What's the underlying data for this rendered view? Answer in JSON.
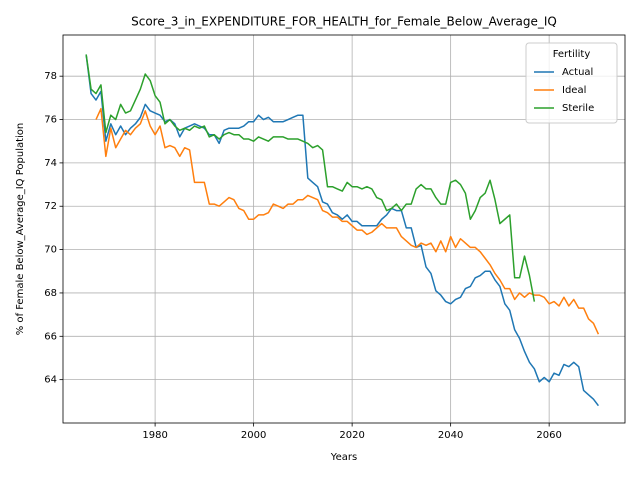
{
  "chart_data": {
    "type": "line",
    "title": "Score_3_in_EXPENDITURE_FOR_HEALTH_for_Female_Below_Average_IQ",
    "x_label": "Years",
    "y_label": "% of Female Below_Average_IQ Population",
    "legend_title": "Fertility",
    "legend_position": "upper right",
    "grid": true,
    "xlim": [
      1961.3,
      2075.4
    ],
    "ylim": [
      62.0,
      79.9
    ],
    "xticks": [
      1980,
      2000,
      2020,
      2040,
      2060
    ],
    "yticks": [
      64,
      66,
      68,
      70,
      72,
      74,
      76,
      78
    ],
    "x": [
      1966,
      1967,
      1968,
      1969,
      1970,
      1971,
      1972,
      1973,
      1974,
      1975,
      1976,
      1977,
      1978,
      1979,
      1980,
      1981,
      1982,
      1983,
      1984,
      1985,
      1986,
      1987,
      1988,
      1989,
      1990,
      1991,
      1992,
      1993,
      1994,
      1995,
      1996,
      1997,
      1998,
      1999,
      2000,
      2001,
      2002,
      2003,
      2004,
      2005,
      2006,
      2007,
      2008,
      2009,
      2010,
      2011,
      2012,
      2013,
      2014,
      2015,
      2016,
      2017,
      2018,
      2019,
      2020,
      2021,
      2022,
      2023,
      2024,
      2025,
      2026,
      2027,
      2028,
      2029,
      2030,
      2031,
      2032,
      2033,
      2034,
      2035,
      2036,
      2037,
      2038,
      2039,
      2040,
      2041,
      2042,
      2043,
      2044,
      2045,
      2046,
      2047,
      2048,
      2049,
      2050,
      2051,
      2052,
      2053,
      2054,
      2055,
      2056,
      2057,
      2058,
      2059,
      2060,
      2061,
      2062,
      2063,
      2064,
      2065,
      2066,
      2067,
      2068,
      2069,
      2070
    ],
    "series": [
      {
        "name": "Actual",
        "color": "#1f77b4",
        "values": [
          79.0,
          77.2,
          76.9,
          77.3,
          75.0,
          75.8,
          75.3,
          75.7,
          75.3,
          75.6,
          75.8,
          76.1,
          76.7,
          76.4,
          76.3,
          76.2,
          75.9,
          76.0,
          75.8,
          75.2,
          75.6,
          75.7,
          75.8,
          75.7,
          75.6,
          75.3,
          75.3,
          74.9,
          75.5,
          75.6,
          75.6,
          75.6,
          75.7,
          75.9,
          75.9,
          76.2,
          76.0,
          76.1,
          75.9,
          75.9,
          75.9,
          76.0,
          76.1,
          76.2,
          76.2,
          73.3,
          73.1,
          72.9,
          72.2,
          72.1,
          71.7,
          71.6,
          71.4,
          71.6,
          71.3,
          71.3,
          71.1,
          71.1,
          71.1,
          71.1,
          71.4,
          71.6,
          71.9,
          71.8,
          71.8,
          71.0,
          71.0,
          70.1,
          70.2,
          69.2,
          68.9,
          68.1,
          67.9,
          67.6,
          67.5,
          67.7,
          67.8,
          68.2,
          68.3,
          68.7,
          68.8,
          69.0,
          69.0,
          68.6,
          68.3,
          67.5,
          67.2,
          66.3,
          65.9,
          65.3,
          64.8,
          64.5,
          63.9,
          64.1,
          63.9,
          64.3,
          64.2,
          64.7,
          64.6,
          64.8,
          64.6,
          63.5,
          63.3,
          63.1,
          62.8
        ]
      },
      {
        "name": "Ideal",
        "color": "#ff7f0e",
        "values": [
          null,
          null,
          76.0,
          76.5,
          74.3,
          75.6,
          74.7,
          75.1,
          75.5,
          75.3,
          75.6,
          75.8,
          76.4,
          75.7,
          75.3,
          75.7,
          74.7,
          74.8,
          74.7,
          74.3,
          74.7,
          74.6,
          73.1,
          73.1,
          73.1,
          72.1,
          72.1,
          72.0,
          72.2,
          72.4,
          72.3,
          71.9,
          71.8,
          71.4,
          71.4,
          71.6,
          71.6,
          71.7,
          72.1,
          72.0,
          71.9,
          72.1,
          72.1,
          72.3,
          72.3,
          72.5,
          72.4,
          72.3,
          71.8,
          71.7,
          71.5,
          71.5,
          71.3,
          71.3,
          71.1,
          70.9,
          70.9,
          70.7,
          70.8,
          71.0,
          71.2,
          71.0,
          71.0,
          71.0,
          70.6,
          70.4,
          70.2,
          70.1,
          70.3,
          70.2,
          70.3,
          69.9,
          70.4,
          69.9,
          70.6,
          70.1,
          70.5,
          70.3,
          70.1,
          70.1,
          69.9,
          69.6,
          69.3,
          68.9,
          68.6,
          68.2,
          68.2,
          67.7,
          68.0,
          67.8,
          68.0,
          67.9,
          67.9,
          67.8,
          67.5,
          67.6,
          67.4,
          67.8,
          67.4,
          67.7,
          67.3,
          67.3,
          66.8,
          66.6,
          66.1
        ]
      },
      {
        "name": "Sterile",
        "color": "#2ca02c",
        "values": [
          79.0,
          77.4,
          77.2,
          77.6,
          75.4,
          76.2,
          76.0,
          76.7,
          76.3,
          76.4,
          76.9,
          77.4,
          78.1,
          77.8,
          77.1,
          76.8,
          75.8,
          76.0,
          75.7,
          75.5,
          75.6,
          75.5,
          75.7,
          75.6,
          75.7,
          75.2,
          75.3,
          75.1,
          75.3,
          75.4,
          75.3,
          75.3,
          75.1,
          75.1,
          75.0,
          75.2,
          75.1,
          75.0,
          75.2,
          75.2,
          75.2,
          75.1,
          75.1,
          75.1,
          75.0,
          74.9,
          74.7,
          74.8,
          74.6,
          72.9,
          72.9,
          72.8,
          72.7,
          73.1,
          72.9,
          72.9,
          72.8,
          72.9,
          72.8,
          72.4,
          72.3,
          71.8,
          71.9,
          72.1,
          71.8,
          72.1,
          72.1,
          72.8,
          73.0,
          72.8,
          72.8,
          72.4,
          72.1,
          72.1,
          73.1,
          73.2,
          73.0,
          72.6,
          71.4,
          71.8,
          72.4,
          72.6,
          73.2,
          72.3,
          71.2,
          71.4,
          71.6,
          68.7,
          68.7,
          69.7,
          68.8,
          67.6,
          null,
          null,
          null,
          null,
          null,
          null,
          null,
          null,
          null,
          null,
          null,
          null,
          null
        ]
      }
    ]
  }
}
